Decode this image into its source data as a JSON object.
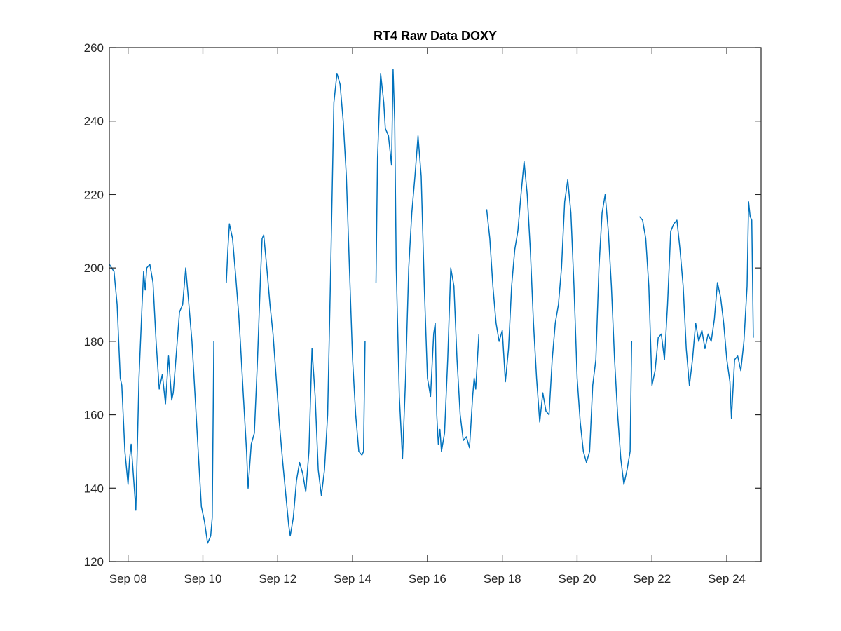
{
  "chart_data": {
    "type": "line",
    "title": "RT4 Raw Data DOXY",
    "xlabel": "",
    "ylabel": "",
    "ylim": [
      120,
      260
    ],
    "xlim": [
      "2017-09-07T12:00",
      "2017-09-24T22:00"
    ],
    "y_ticks": [
      120,
      140,
      160,
      180,
      200,
      220,
      240,
      260
    ],
    "y_tick_labels": [
      "120",
      "140",
      "160",
      "180",
      "200",
      "220",
      "240",
      "260"
    ],
    "x_ticks": [
      "2017-09-08",
      "2017-09-10",
      "2017-09-12",
      "2017-09-14",
      "2017-09-16",
      "2017-09-18",
      "2017-09-20",
      "2017-09-22",
      "2017-09-24"
    ],
    "x_tick_labels": [
      "Sep 08",
      "Sep 10",
      "Sep 12",
      "Sep 14",
      "Sep 16",
      "Sep 18",
      "Sep 20",
      "Sep 22",
      "Sep 24"
    ],
    "grid": false,
    "legend": "none",
    "line_color": "#0072BD",
    "series": [
      {
        "segments": [
          [
            [
              "2017-09-07T12:00",
              201
            ],
            [
              "2017-09-07T15:00",
              199
            ],
            [
              "2017-09-07T17:00",
              190
            ],
            [
              "2017-09-07T19:00",
              170
            ],
            [
              "2017-09-07T20:00",
              168
            ],
            [
              "2017-09-07T22:00",
              150
            ],
            [
              "2017-09-08T00:00",
              141
            ],
            [
              "2017-09-08T01:00",
              148
            ],
            [
              "2017-09-08T02:00",
              152
            ],
            [
              "2017-09-08T03:00",
              146
            ],
            [
              "2017-09-08T05:00",
              134
            ],
            [
              "2017-09-08T07:00",
              170
            ],
            [
              "2017-09-08T09:00",
              190
            ],
            [
              "2017-09-08T10:00",
              199
            ],
            [
              "2017-09-08T11:00",
              194
            ],
            [
              "2017-09-08T12:00",
              200
            ],
            [
              "2017-09-08T14:00",
              201
            ],
            [
              "2017-09-08T16:00",
              196
            ],
            [
              "2017-09-08T18:00",
              180
            ],
            [
              "2017-09-08T20:00",
              167
            ],
            [
              "2017-09-08T22:00",
              171
            ],
            [
              "2017-09-09T00:00",
              163
            ],
            [
              "2017-09-09T02:00",
              176
            ],
            [
              "2017-09-09T04:00",
              164
            ],
            [
              "2017-09-09T05:00",
              166
            ],
            [
              "2017-09-09T07:00",
              177
            ],
            [
              "2017-09-09T09:00",
              188
            ],
            [
              "2017-09-09T11:00",
              190
            ],
            [
              "2017-09-09T13:00",
              200
            ],
            [
              "2017-09-09T15:00",
              190
            ],
            [
              "2017-09-09T17:00",
              180
            ],
            [
              "2017-09-09T19:00",
              165
            ],
            [
              "2017-09-09T21:00",
              150
            ],
            [
              "2017-09-09T23:00",
              135
            ],
            [
              "2017-09-10T01:00",
              131
            ],
            [
              "2017-09-10T03:00",
              125
            ],
            [
              "2017-09-10T05:00",
              127
            ],
            [
              "2017-09-10T06:00",
              132
            ],
            [
              "2017-09-10T07:00",
              180
            ]
          ],
          [
            [
              "2017-09-10T15:00",
              196
            ],
            [
              "2017-09-10T16:00",
              205
            ],
            [
              "2017-09-10T17:00",
              212
            ],
            [
              "2017-09-10T19:00",
              208
            ],
            [
              "2017-09-10T21:00",
              198
            ],
            [
              "2017-09-10T23:00",
              187
            ],
            [
              "2017-09-11T00:00",
              180
            ],
            [
              "2017-09-11T02:00",
              165
            ],
            [
              "2017-09-11T04:00",
              150
            ],
            [
              "2017-09-11T05:00",
              140
            ],
            [
              "2017-09-11T07:00",
              152
            ],
            [
              "2017-09-11T09:00",
              155
            ],
            [
              "2017-09-11T11:00",
              175
            ],
            [
              "2017-09-11T13:00",
              198
            ],
            [
              "2017-09-11T14:00",
              208
            ],
            [
              "2017-09-11T15:00",
              209
            ],
            [
              "2017-09-11T17:00",
              200
            ],
            [
              "2017-09-11T19:00",
              190
            ],
            [
              "2017-09-11T21:00",
              182
            ],
            [
              "2017-09-11T23:00",
              170
            ],
            [
              "2017-09-12T01:00",
              158
            ],
            [
              "2017-09-12T03:00",
              148
            ],
            [
              "2017-09-12T05:00",
              139
            ],
            [
              "2017-09-12T07:00",
              130
            ],
            [
              "2017-09-12T08:00",
              127
            ],
            [
              "2017-09-12T10:00",
              132
            ],
            [
              "2017-09-12T12:00",
              142
            ],
            [
              "2017-09-12T14:00",
              147
            ],
            [
              "2017-09-12T16:00",
              144
            ],
            [
              "2017-09-12T18:00",
              139
            ],
            [
              "2017-09-12T20:00",
              150
            ],
            [
              "2017-09-12T22:00",
              178
            ],
            [
              "2017-09-13T00:00",
              165
            ],
            [
              "2017-09-13T02:00",
              145
            ],
            [
              "2017-09-13T04:00",
              138
            ],
            [
              "2017-09-13T06:00",
              145
            ],
            [
              "2017-09-13T08:00",
              160
            ],
            [
              "2017-09-13T10:00",
              200
            ],
            [
              "2017-09-13T12:00",
              245
            ],
            [
              "2017-09-13T14:00",
              253
            ],
            [
              "2017-09-13T16:00",
              250
            ],
            [
              "2017-09-13T18:00",
              240
            ],
            [
              "2017-09-13T20:00",
              225
            ],
            [
              "2017-09-13T22:00",
              200
            ],
            [
              "2017-09-14T00:00",
              175
            ],
            [
              "2017-09-14T02:00",
              160
            ],
            [
              "2017-09-14T04:00",
              150
            ],
            [
              "2017-09-14T06:00",
              149
            ],
            [
              "2017-09-14T07:00",
              150
            ],
            [
              "2017-09-14T08:00",
              180
            ]
          ],
          [
            [
              "2017-09-14T15:00",
              196
            ],
            [
              "2017-09-14T16:00",
              230
            ],
            [
              "2017-09-14T18:00",
              253
            ],
            [
              "2017-09-14T20:00",
              245
            ],
            [
              "2017-09-14T21:00",
              238
            ],
            [
              "2017-09-14T23:00",
              236
            ],
            [
              "2017-09-15T01:00",
              228
            ],
            [
              "2017-09-15T02:00",
              254
            ],
            [
              "2017-09-15T03:00",
              240
            ],
            [
              "2017-09-15T04:00",
              200
            ],
            [
              "2017-09-15T06:00",
              165
            ],
            [
              "2017-09-15T08:00",
              148
            ],
            [
              "2017-09-15T10:00",
              170
            ],
            [
              "2017-09-15T12:00",
              200
            ],
            [
              "2017-09-15T14:00",
              215
            ],
            [
              "2017-09-15T16:00",
              225
            ],
            [
              "2017-09-15T18:00",
              236
            ],
            [
              "2017-09-15T20:00",
              225
            ],
            [
              "2017-09-15T22:00",
              195
            ],
            [
              "2017-09-16T00:00",
              170
            ],
            [
              "2017-09-16T02:00",
              165
            ],
            [
              "2017-09-16T04:00",
              182
            ],
            [
              "2017-09-16T05:00",
              185
            ],
            [
              "2017-09-16T06:00",
              160
            ],
            [
              "2017-09-16T07:00",
              152
            ],
            [
              "2017-09-16T08:00",
              156
            ],
            [
              "2017-09-16T09:00",
              150
            ],
            [
              "2017-09-16T11:00",
              155
            ],
            [
              "2017-09-16T13:00",
              175
            ],
            [
              "2017-09-16T15:00",
              200
            ],
            [
              "2017-09-16T17:00",
              195
            ],
            [
              "2017-09-16T19:00",
              175
            ],
            [
              "2017-09-16T21:00",
              160
            ],
            [
              "2017-09-16T23:00",
              153
            ],
            [
              "2017-09-17T01:00",
              154
            ],
            [
              "2017-09-17T03:00",
              151
            ],
            [
              "2017-09-17T05:00",
              165
            ],
            [
              "2017-09-17T06:00",
              170
            ],
            [
              "2017-09-17T07:00",
              167
            ],
            [
              "2017-09-17T09:00",
              182
            ]
          ],
          [
            [
              "2017-09-17T14:00",
              216
            ],
            [
              "2017-09-17T16:00",
              208
            ],
            [
              "2017-09-17T18:00",
              195
            ],
            [
              "2017-09-17T20:00",
              185
            ],
            [
              "2017-09-17T22:00",
              180
            ],
            [
              "2017-09-18T00:00",
              183
            ],
            [
              "2017-09-18T02:00",
              169
            ],
            [
              "2017-09-18T04:00",
              178
            ],
            [
              "2017-09-18T06:00",
              195
            ],
            [
              "2017-09-18T08:00",
              205
            ],
            [
              "2017-09-18T10:00",
              210
            ],
            [
              "2017-09-18T12:00",
              220
            ],
            [
              "2017-09-18T14:00",
              229
            ],
            [
              "2017-09-18T16:00",
              220
            ],
            [
              "2017-09-18T18:00",
              205
            ],
            [
              "2017-09-18T20:00",
              185
            ],
            [
              "2017-09-18T22:00",
              170
            ],
            [
              "2017-09-19T00:00",
              158
            ],
            [
              "2017-09-19T02:00",
              166
            ],
            [
              "2017-09-19T04:00",
              161
            ],
            [
              "2017-09-19T06:00",
              160
            ],
            [
              "2017-09-19T08:00",
              175
            ],
            [
              "2017-09-19T10:00",
              185
            ],
            [
              "2017-09-19T12:00",
              190
            ],
            [
              "2017-09-19T14:00",
              200
            ],
            [
              "2017-09-19T16:00",
              218
            ],
            [
              "2017-09-19T18:00",
              224
            ],
            [
              "2017-09-19T20:00",
              215
            ],
            [
              "2017-09-19T22:00",
              195
            ],
            [
              "2017-09-20T00:00",
              170
            ],
            [
              "2017-09-20T02:00",
              158
            ],
            [
              "2017-09-20T04:00",
              150
            ],
            [
              "2017-09-20T06:00",
              147
            ],
            [
              "2017-09-20T08:00",
              150
            ],
            [
              "2017-09-20T10:00",
              168
            ],
            [
              "2017-09-20T12:00",
              175
            ],
            [
              "2017-09-20T14:00",
              200
            ],
            [
              "2017-09-20T16:00",
              215
            ],
            [
              "2017-09-20T18:00",
              220
            ],
            [
              "2017-09-20T20:00",
              210
            ],
            [
              "2017-09-20T22:00",
              195
            ],
            [
              "2017-09-21T00:00",
              175
            ],
            [
              "2017-09-21T02:00",
              160
            ],
            [
              "2017-09-21T04:00",
              148
            ],
            [
              "2017-09-21T06:00",
              141
            ],
            [
              "2017-09-21T08:00",
              145
            ],
            [
              "2017-09-21T10:00",
              150
            ],
            [
              "2017-09-21T11:00",
              180
            ]
          ],
          [
            [
              "2017-09-21T16:00",
              214
            ],
            [
              "2017-09-21T18:00",
              213
            ],
            [
              "2017-09-21T20:00",
              208
            ],
            [
              "2017-09-21T22:00",
              195
            ],
            [
              "2017-09-22T00:00",
              168
            ],
            [
              "2017-09-22T02:00",
              172
            ],
            [
              "2017-09-22T04:00",
              181
            ],
            [
              "2017-09-22T06:00",
              182
            ],
            [
              "2017-09-22T08:00",
              175
            ],
            [
              "2017-09-22T10:00",
              190
            ],
            [
              "2017-09-22T12:00",
              210
            ],
            [
              "2017-09-22T14:00",
              212
            ],
            [
              "2017-09-22T16:00",
              213
            ],
            [
              "2017-09-22T18:00",
              205
            ],
            [
              "2017-09-22T20:00",
              195
            ],
            [
              "2017-09-22T22:00",
              178
            ],
            [
              "2017-09-23T00:00",
              168
            ],
            [
              "2017-09-23T02:00",
              175
            ],
            [
              "2017-09-23T04:00",
              185
            ],
            [
              "2017-09-23T06:00",
              180
            ],
            [
              "2017-09-23T08:00",
              183
            ],
            [
              "2017-09-23T10:00",
              178
            ],
            [
              "2017-09-23T12:00",
              182
            ],
            [
              "2017-09-23T14:00",
              180
            ],
            [
              "2017-09-23T16:00",
              186
            ],
            [
              "2017-09-23T18:00",
              196
            ],
            [
              "2017-09-23T20:00",
              192
            ],
            [
              "2017-09-23T22:00",
              185
            ],
            [
              "2017-09-24T00:00",
              175
            ],
            [
              "2017-09-24T02:00",
              169
            ],
            [
              "2017-09-24T03:00",
              159
            ],
            [
              "2017-09-24T05:00",
              175
            ],
            [
              "2017-09-24T07:00",
              176
            ],
            [
              "2017-09-24T09:00",
              172
            ],
            [
              "2017-09-24T11:00",
              180
            ],
            [
              "2017-09-24T13:00",
              195
            ],
            [
              "2017-09-24T14:00",
              218
            ],
            [
              "2017-09-24T15:00",
              214
            ],
            [
              "2017-09-24T16:00",
              213
            ],
            [
              "2017-09-24T17:00",
              181
            ]
          ]
        ]
      }
    ]
  }
}
